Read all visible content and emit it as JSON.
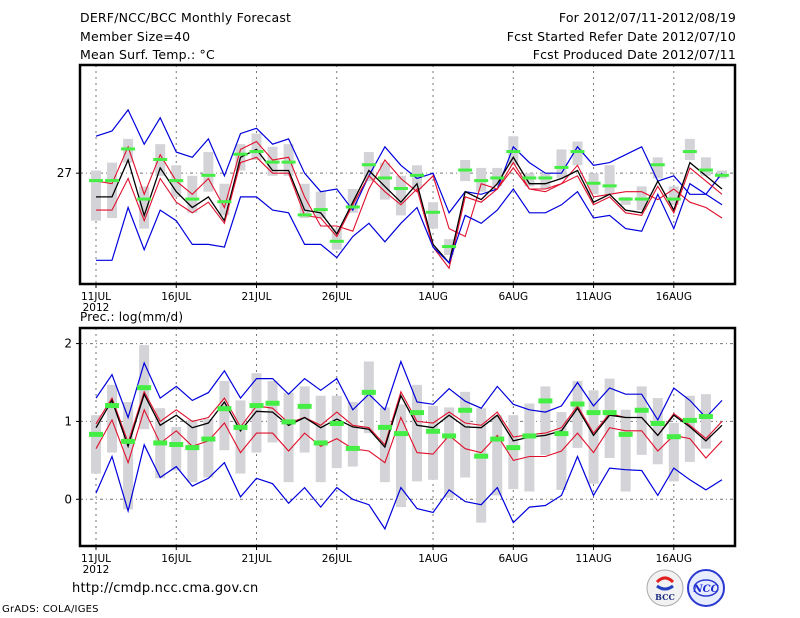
{
  "header": {
    "title": "DERF/NCC/BCC Monthly Forecast",
    "member_size": "Member Size=40",
    "variable": "Mean Surf. Temp.: °C",
    "period": "For 2012/07/11-2012/08/19",
    "started": "Fcst Started Refer Date 2012/07/10",
    "produced": "Fcst Produced Date 2012/07/11"
  },
  "footer": {
    "url": "http://cmdp.ncc.cma.gov.cn",
    "credit": "GrADS: COLA/IGES",
    "logo_left": "BCC",
    "logo_right": "NCC"
  },
  "colors": {
    "ensemble_bounds": "#0000dd",
    "quartiles": "#e0102c",
    "mean": "#000000",
    "observation_marker": "#44ee44",
    "spread_bar": "#d4d4d8"
  },
  "chart_data": [
    {
      "type": "line",
      "title": "Mean Surf. Temp.: °C",
      "xlabel": "",
      "ylabel": "",
      "x_start": "2012-07-11",
      "days": 40,
      "x_tick_labels": [
        "11JUL",
        "16JUL",
        "21JUL",
        "26JUL",
        "1AUG",
        "6AUG",
        "11AUG",
        "16AUG"
      ],
      "x_tick_days": [
        0,
        5,
        10,
        15,
        21,
        26,
        31,
        36
      ],
      "x_sub_label": "2012",
      "y_tick_labels": [
        "27"
      ],
      "y_ticks": [
        27
      ],
      "ylim": [
        22.8,
        31.1
      ],
      "grid": true,
      "series": [
        {
          "name": "max",
          "values": [
            28.4,
            28.6,
            29.4,
            28.1,
            29.1,
            27.8,
            27.6,
            28.3,
            26.9,
            28.5,
            28.7,
            28.1,
            28.3,
            27.0,
            26.3,
            26.4,
            25.6,
            26.9,
            28.0,
            27.3,
            26.8,
            27.0,
            25.5,
            26.3,
            26.2,
            26.4,
            28.0,
            27.4,
            27.0,
            27.0,
            28.0,
            27.3,
            27.4,
            27.7,
            28.0,
            26.7,
            26.9,
            26.2,
            26.2,
            27.0,
            26.3,
            27.0,
            28.3,
            27.8,
            27.2,
            27.0,
            27.0
          ]
        },
        {
          "name": "q_upper",
          "values": [
            26.7,
            26.6,
            28.0,
            26.2,
            27.7,
            26.7,
            26.2,
            26.8,
            25.7,
            27.9,
            28.2,
            27.5,
            27.6,
            26.1,
            25.0,
            25.0,
            24.8,
            26.4,
            27.5,
            26.8,
            26.3,
            26.9,
            24.9,
            24.6,
            26.6,
            26.4,
            27.2,
            26.4,
            26.3,
            26.6,
            27.3,
            26.1,
            26.2,
            26.3,
            26.3,
            26.0,
            26.4,
            25.9,
            25.7,
            25.3,
            26.8,
            26.6,
            28.2,
            27.6,
            27.0,
            26.7,
            26.5
          ]
        },
        {
          "name": "mean",
          "values": [
            26.1,
            26.1,
            27.5,
            25.4,
            27.2,
            26.3,
            25.7,
            26.1,
            25.2,
            27.6,
            27.9,
            27.1,
            27.1,
            25.6,
            25.5,
            24.7,
            25.9,
            27.1,
            26.5,
            25.9,
            26.6,
            24.3,
            23.6,
            26.3,
            26.0,
            26.6,
            27.6,
            26.6,
            26.6,
            26.8,
            27.1,
            25.9,
            26.2,
            25.6,
            25.5,
            26.7,
            25.6,
            27.4,
            26.9,
            26.4,
            26.2,
            26.3
          ]
        },
        {
          "name": "q_lower",
          "values": [
            25.6,
            25.6,
            26.8,
            25.2,
            26.8,
            25.9,
            25.5,
            25.9,
            25.1,
            27.4,
            27.6,
            27.0,
            27.0,
            25.4,
            25.3,
            24.6,
            25.8,
            26.9,
            26.3,
            25.8,
            26.4,
            24.2,
            23.4,
            26.1,
            25.9,
            26.4,
            27.4,
            26.4,
            26.4,
            26.6,
            26.9,
            25.8,
            26.1,
            25.5,
            25.4,
            26.5,
            25.5,
            27.2,
            26.7,
            26.2,
            26.0,
            26.2
          ]
        },
        {
          "name": "min",
          "values": [
            23.7,
            23.7,
            25.7,
            24.1,
            25.6,
            25.2,
            24.3,
            24.3,
            24.2,
            26.1,
            26.1,
            25.6,
            25.5,
            24.3,
            24.3,
            23.8,
            24.6,
            25.1,
            24.4,
            25.1,
            25.7,
            24.2,
            23.6,
            25.4,
            25.1,
            25.6,
            26.4,
            25.5,
            25.5,
            25.8,
            26.3,
            25.3,
            25.4,
            24.9,
            24.8,
            26.2,
            24.9,
            26.6,
            26.2,
            25.8,
            25.5,
            25.5
          ]
        },
        {
          "name": "observed",
          "values": [
            26.7,
            26.7,
            27.9,
            26.0,
            27.5,
            26.7,
            26.0,
            26.9,
            25.9,
            27.7,
            27.8,
            27.4,
            27.4,
            25.4,
            25.6,
            24.4,
            25.7,
            27.3,
            26.8,
            26.4,
            26.9,
            25.5,
            24.2,
            27.1,
            26.7,
            26.8,
            27.8,
            26.8,
            26.8,
            27.2,
            27.8,
            26.6,
            26.5,
            26.0,
            26.0,
            27.3,
            26.0,
            27.8,
            27.1,
            26.9,
            26.9,
            26.9
          ]
        }
      ],
      "spread_bars": [
        {
          "lo": 25.2,
          "hi": 27.1
        },
        {
          "lo": 25.3,
          "hi": 27.4
        },
        {
          "lo": 27.4,
          "hi": 28.3
        },
        {
          "lo": 24.9,
          "hi": 26.5
        },
        {
          "lo": 26.9,
          "hi": 28.1
        },
        {
          "lo": 26.1,
          "hi": 27.3
        },
        {
          "lo": 25.5,
          "hi": 26.9
        },
        {
          "lo": 26.3,
          "hi": 27.8
        },
        {
          "lo": 25.4,
          "hi": 26.6
        },
        {
          "lo": 27.1,
          "hi": 28.1
        },
        {
          "lo": 27.5,
          "hi": 28.5
        },
        {
          "lo": 26.9,
          "hi": 28.0
        },
        {
          "lo": 26.9,
          "hi": 28.1
        },
        {
          "lo": 25.3,
          "hi": 26.6
        },
        {
          "lo": 25.3,
          "hi": 26.3
        },
        {
          "lo": 24.1,
          "hi": 24.9
        },
        {
          "lo": 25.5,
          "hi": 26.4
        },
        {
          "lo": 26.7,
          "hi": 27.8
        },
        {
          "lo": 26.0,
          "hi": 27.4
        },
        {
          "lo": 25.4,
          "hi": 26.9
        },
        {
          "lo": 26.4,
          "hi": 27.3
        },
        {
          "lo": 24.9,
          "hi": 25.9
        },
        {
          "lo": 23.9,
          "hi": 24.5
        },
        {
          "lo": 26.7,
          "hi": 27.5
        },
        {
          "lo": 26.3,
          "hi": 27.2
        },
        {
          "lo": 26.5,
          "hi": 27.2
        },
        {
          "lo": 27.3,
          "hi": 28.4
        },
        {
          "lo": 26.5,
          "hi": 27.0
        },
        {
          "lo": 26.4,
          "hi": 27.0
        },
        {
          "lo": 26.8,
          "hi": 27.9
        },
        {
          "lo": 27.3,
          "hi": 28.2
        },
        {
          "lo": 26.2,
          "hi": 27.0
        },
        {
          "lo": 26.2,
          "hi": 27.3
        },
        {
          "lo": 25.8,
          "hi": 26.1
        },
        {
          "lo": 25.6,
          "hi": 26.5
        },
        {
          "lo": 26.8,
          "hi": 27.6
        },
        {
          "lo": 25.8,
          "hi": 26.5
        },
        {
          "lo": 27.5,
          "hi": 28.3
        },
        {
          "lo": 26.9,
          "hi": 27.6
        },
        {
          "lo": 26.8,
          "hi": 27.1
        }
      ]
    },
    {
      "type": "line",
      "title": "Prec.: log(mm/d)",
      "xlabel": "",
      "ylabel": "",
      "x_start": "2012-07-11",
      "days": 40,
      "x_tick_labels": [
        "11JUL",
        "16JUL",
        "21JUL",
        "26JUL",
        "1AUG",
        "6AUG",
        "11AUG",
        "16AUG"
      ],
      "x_tick_days": [
        0,
        5,
        10,
        15,
        21,
        26,
        31,
        36
      ],
      "x_sub_label": "2012",
      "y_tick_labels": [
        "0",
        "1",
        "2"
      ],
      "y_ticks": [
        0,
        1,
        2
      ],
      "ylim": [
        -0.6,
        2.2
      ],
      "grid": true,
      "series": [
        {
          "name": "max",
          "values": [
            1.3,
            1.6,
            1.05,
            1.75,
            1.3,
            1.45,
            1.27,
            1.37,
            1.65,
            1.3,
            1.55,
            1.55,
            1.35,
            1.55,
            1.4,
            1.55,
            1.15,
            1.35,
            1.15,
            1.77,
            1.25,
            1.22,
            1.42,
            1.26,
            1.17,
            1.45,
            1.22,
            1.15,
            1.12,
            1.2,
            1.5,
            1.2,
            1.43,
            1.35,
            1.35,
            1.02,
            1.43,
            1.27,
            1.05,
            1.27,
            1.4
          ]
        },
        {
          "name": "q_upper",
          "values": [
            0.97,
            1.3,
            0.73,
            1.38,
            1.0,
            1.15,
            1.0,
            1.05,
            1.3,
            0.93,
            1.2,
            1.17,
            0.98,
            1.05,
            0.95,
            1.12,
            0.95,
            0.92,
            0.7,
            1.38,
            1.0,
            0.98,
            1.12,
            0.98,
            0.95,
            1.12,
            0.8,
            0.83,
            0.85,
            0.92,
            1.2,
            0.85,
            1.1,
            1.05,
            1.05,
            0.82,
            1.1,
            0.95,
            0.78,
            1.0,
            1.12
          ]
        },
        {
          "name": "mean",
          "values": [
            0.92,
            1.27,
            0.68,
            1.35,
            0.95,
            1.08,
            0.92,
            0.98,
            1.25,
            0.88,
            1.13,
            1.12,
            0.95,
            1.05,
            0.92,
            1.03,
            0.93,
            0.9,
            0.67,
            1.33,
            0.95,
            0.92,
            1.08,
            0.93,
            0.92,
            1.08,
            0.75,
            0.8,
            0.82,
            0.88,
            1.17,
            0.82,
            1.08,
            1.05,
            1.05,
            0.82,
            1.08,
            0.93,
            0.75,
            0.95,
            1.1
          ]
        },
        {
          "name": "q_lower",
          "values": [
            0.65,
            1.02,
            0.47,
            1.15,
            0.72,
            0.88,
            0.68,
            0.75,
            0.98,
            0.6,
            0.85,
            0.85,
            0.62,
            0.85,
            0.68,
            0.78,
            0.65,
            0.62,
            0.47,
            1.05,
            0.6,
            0.58,
            0.82,
            0.65,
            0.6,
            0.82,
            0.5,
            0.55,
            0.55,
            0.62,
            0.85,
            0.6,
            0.92,
            0.88,
            0.88,
            0.62,
            0.82,
            0.78,
            0.53,
            0.75,
            0.88
          ]
        },
        {
          "name": "min",
          "values": [
            0.08,
            0.55,
            -0.15,
            0.7,
            0.28,
            0.42,
            0.17,
            0.27,
            0.47,
            0.03,
            0.27,
            0.2,
            -0.05,
            0.15,
            -0.1,
            0.15,
            0.0,
            -0.07,
            -0.38,
            0.15,
            -0.12,
            -0.17,
            0.12,
            -0.03,
            -0.07,
            0.15,
            -0.3,
            -0.1,
            -0.08,
            0.05,
            0.55,
            0.05,
            0.4,
            0.38,
            0.37,
            0.05,
            0.4,
            0.25,
            0.12,
            0.25,
            0.52
          ]
        },
        {
          "name": "observed",
          "values": [
            0.84,
            1.21,
            0.75,
            1.44,
            0.73,
            0.71,
            0.67,
            0.78,
            1.17,
            0.93,
            1.21,
            1.24,
            1.0,
            1.2,
            0.73,
            0.98,
            0.66,
            1.38,
            0.93,
            0.85,
            1.12,
            0.88,
            0.82,
            1.15,
            0.56,
            0.78,
            0.67,
            0.82,
            1.27,
            0.85,
            1.23,
            1.12,
            1.12,
            0.84,
            1.15,
            0.98,
            0.81,
            1.02,
            1.07
          ]
        }
      ],
      "spread_bars": [
        {
          "lo": 0.33,
          "hi": 1.08
        },
        {
          "lo": 0.6,
          "hi": 1.47
        },
        {
          "lo": -0.13,
          "hi": 1.25
        },
        {
          "lo": 0.9,
          "hi": 1.98
        },
        {
          "lo": 0.27,
          "hi": 1.17
        },
        {
          "lo": 0.37,
          "hi": 0.93
        },
        {
          "lo": 0.22,
          "hi": 1.02
        },
        {
          "lo": 0.28,
          "hi": 1.03
        },
        {
          "lo": 0.63,
          "hi": 1.52
        },
        {
          "lo": 0.33,
          "hi": 1.27
        },
        {
          "lo": 0.6,
          "hi": 1.62
        },
        {
          "lo": 0.73,
          "hi": 1.52
        },
        {
          "lo": 0.22,
          "hi": 1.37
        },
        {
          "lo": 0.6,
          "hi": 1.45
        },
        {
          "lo": 0.22,
          "hi": 1.33
        },
        {
          "lo": 0.4,
          "hi": 1.33
        },
        {
          "lo": 0.42,
          "hi": 1.25
        },
        {
          "lo": 0.85,
          "hi": 1.77
        },
        {
          "lo": 0.22,
          "hi": 1.18
        },
        {
          "lo": -0.1,
          "hi": 1.22
        },
        {
          "lo": 0.23,
          "hi": 1.47
        },
        {
          "lo": 0.25,
          "hi": 1.2
        },
        {
          "lo": 0.02,
          "hi": 1.18
        },
        {
          "lo": 0.28,
          "hi": 1.38
        },
        {
          "lo": -0.3,
          "hi": 1.17
        },
        {
          "lo": 0.05,
          "hi": 1.08
        },
        {
          "lo": 0.13,
          "hi": 1.08
        },
        {
          "lo": 0.1,
          "hi": 1.23
        },
        {
          "lo": 0.57,
          "hi": 1.45
        },
        {
          "lo": 0.12,
          "hi": 1.12
        },
        {
          "lo": 0.66,
          "hi": 1.52
        },
        {
          "lo": 0.2,
          "hi": 1.4
        },
        {
          "lo": 0.53,
          "hi": 1.55
        },
        {
          "lo": 0.1,
          "hi": 1.15
        },
        {
          "lo": 0.57,
          "hi": 1.45
        },
        {
          "lo": 0.45,
          "hi": 1.3
        },
        {
          "lo": 0.23,
          "hi": 0.98
        },
        {
          "lo": 0.48,
          "hi": 1.33
        },
        {
          "lo": 0.65,
          "hi": 1.35
        }
      ]
    }
  ]
}
